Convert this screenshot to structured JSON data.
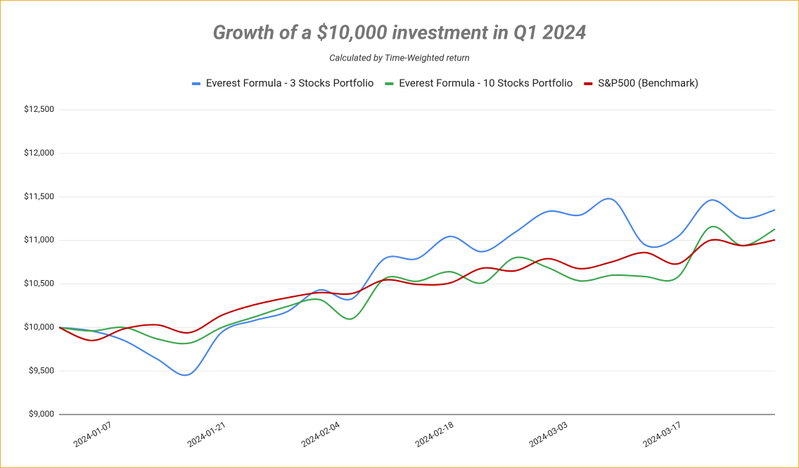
{
  "chart_data": {
    "type": "line",
    "title": "Growth of a $10,000 investment in Q1 2024",
    "subtitle": "Calculated by Time-Weighted return",
    "x": [
      "2024-01-01",
      "2024-01-05",
      "2024-01-09",
      "2024-01-13",
      "2024-01-17",
      "2024-01-21",
      "2024-01-25",
      "2024-01-29",
      "2024-02-02",
      "2024-02-06",
      "2024-02-10",
      "2024-02-14",
      "2024-02-18",
      "2024-02-22",
      "2024-02-26",
      "2024-03-01",
      "2024-03-05",
      "2024-03-09",
      "2024-03-13",
      "2024-03-17",
      "2024-03-21",
      "2024-03-25",
      "2024-03-29"
    ],
    "series": [
      {
        "name": "Everest Formula - 3 Stocks Portfolio",
        "color": "#4a86e8",
        "values": [
          10000,
          9960,
          9850,
          9640,
          9460,
          9945,
          10080,
          10180,
          10430,
          10330,
          10790,
          10790,
          11045,
          10870,
          11090,
          11330,
          11290,
          11470,
          10950,
          11040,
          11460,
          11255,
          11350
        ]
      },
      {
        "name": "Everest Formula - 10 Stocks Portfolio",
        "color": "#3ea650",
        "values": [
          10000,
          9960,
          10000,
          9870,
          9820,
          10000,
          10120,
          10240,
          10320,
          10100,
          10560,
          10530,
          10640,
          10510,
          10800,
          10690,
          10535,
          10600,
          10585,
          10575,
          11150,
          10940,
          11130
        ]
      },
      {
        "name": "S&P500 (Benchmark)",
        "color": "#c00000",
        "values": [
          10000,
          9850,
          9985,
          10030,
          9940,
          10140,
          10260,
          10340,
          10400,
          10390,
          10545,
          10495,
          10510,
          10680,
          10650,
          10790,
          10675,
          10755,
          10860,
          10730,
          11000,
          10940,
          11005
        ]
      }
    ],
    "xlim": [
      "2024-01-01",
      "2024-03-29"
    ],
    "xticks": [
      "2024-01-07",
      "2024-01-21",
      "2024-02-04",
      "2024-02-18",
      "2024-03-03",
      "2024-03-17"
    ],
    "ylim": [
      9000,
      12500
    ],
    "yticks": [
      {
        "value": 9000,
        "label": "$9,000"
      },
      {
        "value": 9500,
        "label": "$9,500"
      },
      {
        "value": 10000,
        "label": "$10,000"
      },
      {
        "value": 10500,
        "label": "$10,500"
      },
      {
        "value": 11000,
        "label": "$11,000"
      },
      {
        "value": 11500,
        "label": "$11,500"
      },
      {
        "value": 12000,
        "label": "$12,000"
      },
      {
        "value": 12500,
        "label": "$12,500"
      }
    ],
    "grid": true,
    "legend": "top"
  }
}
